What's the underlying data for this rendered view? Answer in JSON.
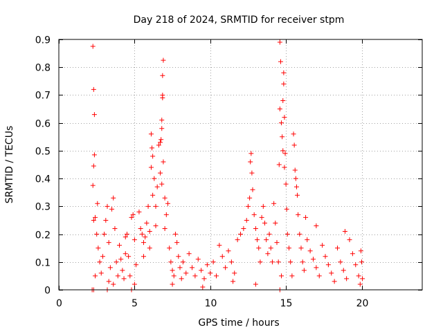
{
  "chart_data": {
    "type": "scatter",
    "title": "Day 218 of 2024, SRMTID for receiver stpm",
    "xlabel": "GPS time / hours",
    "ylabel": "SRMTID / TECUs",
    "xlim": [
      0,
      24
    ],
    "ylim": [
      0,
      0.9
    ],
    "xticks": [
      0,
      5,
      10,
      15,
      20
    ],
    "xtick_labels": [
      "0",
      "5",
      "10",
      "15",
      "20"
    ],
    "yticks": [
      0,
      0.1,
      0.2,
      0.3,
      0.4,
      0.5,
      0.6,
      0.7,
      0.8,
      0.9
    ],
    "ytick_labels": [
      "0",
      "0.1",
      "0.2",
      "0.3",
      "0.4",
      "0.5",
      "0.6",
      "0.7",
      "0.8",
      "0.9"
    ],
    "grid": true,
    "marker": "+",
    "marker_color": "#ff0000",
    "series": [
      {
        "name": "SRMTID",
        "points": [
          [
            2.25,
            0.875
          ],
          [
            2.3,
            0.72
          ],
          [
            2.35,
            0.63
          ],
          [
            2.35,
            0.485
          ],
          [
            2.3,
            0.445
          ],
          [
            2.25,
            0.375
          ],
          [
            2.3,
            0.25
          ],
          [
            2.4,
            0.26
          ],
          [
            2.55,
            0.31
          ],
          [
            2.5,
            0.2
          ],
          [
            2.6,
            0.15
          ],
          [
            2.7,
            0.1
          ],
          [
            2.4,
            0.05
          ],
          [
            2.3,
            0.0
          ],
          [
            2.2,
            0.0
          ],
          [
            2.8,
            0.06
          ],
          [
            2.9,
            0.12
          ],
          [
            3.0,
            0.2
          ],
          [
            3.1,
            0.25
          ],
          [
            3.2,
            0.3
          ],
          [
            3.3,
            0.17
          ],
          [
            3.4,
            0.08
          ],
          [
            3.5,
            0.29
          ],
          [
            3.6,
            0.33
          ],
          [
            3.7,
            0.22
          ],
          [
            3.8,
            0.1
          ],
          [
            3.9,
            0.05
          ],
          [
            3.2,
            0.0
          ],
          [
            3.3,
            0.03
          ],
          [
            3.6,
            0.02
          ],
          [
            4.0,
            0.16
          ],
          [
            4.1,
            0.11
          ],
          [
            4.2,
            0.07
          ],
          [
            4.3,
            0.04
          ],
          [
            4.4,
            0.19
          ],
          [
            4.5,
            0.2
          ],
          [
            4.6,
            0.12
          ],
          [
            4.7,
            0.05
          ],
          [
            4.8,
            0.26
          ],
          [
            4.9,
            0.27
          ],
          [
            5.0,
            0.18
          ],
          [
            5.1,
            0.09
          ],
          [
            4.8,
            0.0
          ],
          [
            5.0,
            0.02
          ],
          [
            4.4,
            0.13
          ],
          [
            5.3,
            0.28
          ],
          [
            5.4,
            0.22
          ],
          [
            5.5,
            0.2
          ],
          [
            5.6,
            0.17
          ],
          [
            5.7,
            0.19
          ],
          [
            5.8,
            0.24
          ],
          [
            5.9,
            0.3
          ],
          [
            6.0,
            0.21
          ],
          [
            6.1,
            0.56
          ],
          [
            6.15,
            0.51
          ],
          [
            6.2,
            0.48
          ],
          [
            6.1,
            0.44
          ],
          [
            6.3,
            0.4
          ],
          [
            6.2,
            0.34
          ],
          [
            6.4,
            0.3
          ],
          [
            6.5,
            0.37
          ],
          [
            6.6,
            0.52
          ],
          [
            6.7,
            0.53
          ],
          [
            6.75,
            0.54
          ],
          [
            6.8,
            0.61
          ],
          [
            6.85,
            0.69
          ],
          [
            6.85,
            0.7
          ],
          [
            6.85,
            0.77
          ],
          [
            6.9,
            0.825
          ],
          [
            6.8,
            0.58
          ],
          [
            6.9,
            0.46
          ],
          [
            6.7,
            0.42
          ],
          [
            6.8,
            0.38
          ],
          [
            7.0,
            0.33
          ],
          [
            7.1,
            0.27
          ],
          [
            7.2,
            0.31
          ],
          [
            7.0,
            0.22
          ],
          [
            7.3,
            0.15
          ],
          [
            7.4,
            0.1
          ],
          [
            7.5,
            0.07
          ],
          [
            7.6,
            0.05
          ],
          [
            7.7,
            0.2
          ],
          [
            7.8,
            0.17
          ],
          [
            7.9,
            0.12
          ],
          [
            8.0,
            0.08
          ],
          [
            8.1,
            0.04
          ],
          [
            7.5,
            0.02
          ],
          [
            6.4,
            0.23
          ],
          [
            6.0,
            0.15
          ],
          [
            5.6,
            0.12
          ],
          [
            8.2,
            0.1
          ],
          [
            8.4,
            0.06
          ],
          [
            8.6,
            0.13
          ],
          [
            8.8,
            0.08
          ],
          [
            9.0,
            0.05
          ],
          [
            9.2,
            0.11
          ],
          [
            9.4,
            0.07
          ],
          [
            9.6,
            0.04
          ],
          [
            9.8,
            0.09
          ],
          [
            10.0,
            0.06
          ],
          [
            10.2,
            0.1
          ],
          [
            10.4,
            0.05
          ],
          [
            10.6,
            0.16
          ],
          [
            10.8,
            0.12
          ],
          [
            11.0,
            0.08
          ],
          [
            11.2,
            0.14
          ],
          [
            11.4,
            0.1
          ],
          [
            11.6,
            0.06
          ],
          [
            11.8,
            0.18
          ],
          [
            12.0,
            0.2
          ],
          [
            12.2,
            0.22
          ],
          [
            12.4,
            0.25
          ],
          [
            12.5,
            0.3
          ],
          [
            12.6,
            0.33
          ],
          [
            12.65,
            0.46
          ],
          [
            12.7,
            0.49
          ],
          [
            12.75,
            0.42
          ],
          [
            12.8,
            0.36
          ],
          [
            12.9,
            0.27
          ],
          [
            13.0,
            0.22
          ],
          [
            13.1,
            0.18
          ],
          [
            13.2,
            0.15
          ],
          [
            13.3,
            0.1
          ],
          [
            13.4,
            0.26
          ],
          [
            13.5,
            0.3
          ],
          [
            13.6,
            0.24
          ],
          [
            13.7,
            0.18
          ],
          [
            13.8,
            0.13
          ],
          [
            13.9,
            0.2
          ],
          [
            14.0,
            0.15
          ],
          [
            14.1,
            0.1
          ],
          [
            14.2,
            0.31
          ],
          [
            14.3,
            0.24
          ],
          [
            14.4,
            0.17
          ],
          [
            14.5,
            0.1
          ],
          [
            14.55,
            0.45
          ],
          [
            14.6,
            0.65
          ],
          [
            14.65,
            0.82
          ],
          [
            14.6,
            0.89
          ],
          [
            14.7,
            0.6
          ],
          [
            14.75,
            0.55
          ],
          [
            14.8,
            0.5
          ],
          [
            14.8,
            0.68
          ],
          [
            14.85,
            0.74
          ],
          [
            14.85,
            0.78
          ],
          [
            14.9,
            0.62
          ],
          [
            14.9,
            0.44
          ],
          [
            14.95,
            0.49
          ],
          [
            15.0,
            0.38
          ],
          [
            15.05,
            0.29
          ],
          [
            14.7,
            0.05
          ],
          [
            14.6,
            0.0
          ],
          [
            15.1,
            0.2
          ],
          [
            15.2,
            0.15
          ],
          [
            15.3,
            0.1
          ],
          [
            15.4,
            0.05
          ],
          [
            15.5,
            0.56
          ],
          [
            15.55,
            0.52
          ],
          [
            15.6,
            0.43
          ],
          [
            15.65,
            0.4
          ],
          [
            15.7,
            0.37
          ],
          [
            15.75,
            0.34
          ],
          [
            15.8,
            0.27
          ],
          [
            15.9,
            0.2
          ],
          [
            16.0,
            0.15
          ],
          [
            16.1,
            0.1
          ],
          [
            16.2,
            0.07
          ],
          [
            16.4,
            0.18
          ],
          [
            16.6,
            0.14
          ],
          [
            16.8,
            0.11
          ],
          [
            17.0,
            0.08
          ],
          [
            17.2,
            0.05
          ],
          [
            17.4,
            0.16
          ],
          [
            17.6,
            0.12
          ],
          [
            17.8,
            0.09
          ],
          [
            18.0,
            0.06
          ],
          [
            18.2,
            0.03
          ],
          [
            18.4,
            0.15
          ],
          [
            18.6,
            0.1
          ],
          [
            18.8,
            0.07
          ],
          [
            19.0,
            0.04
          ],
          [
            19.2,
            0.18
          ],
          [
            19.4,
            0.13
          ],
          [
            19.6,
            0.09
          ],
          [
            19.8,
            0.05
          ],
          [
            19.9,
            0.02
          ],
          [
            19.95,
            0.14
          ],
          [
            20.0,
            0.1
          ],
          [
            20.05,
            0.04
          ],
          [
            18.9,
            0.21
          ],
          [
            17.0,
            0.23
          ],
          [
            16.3,
            0.26
          ],
          [
            13.0,
            0.02
          ],
          [
            11.5,
            0.03
          ],
          [
            9.5,
            0.01
          ]
        ]
      }
    ]
  }
}
